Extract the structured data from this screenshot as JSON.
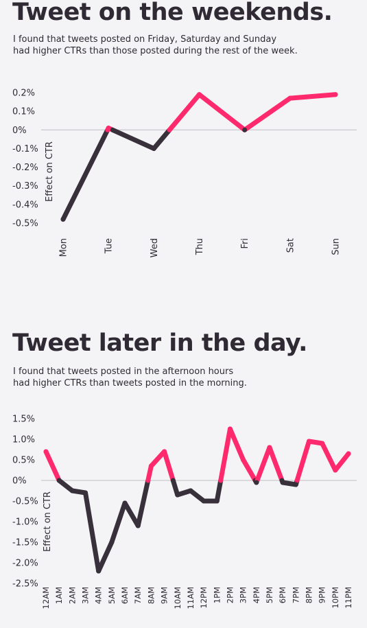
{
  "colors": {
    "positive": "#ff2a6d",
    "negative": "#38303a",
    "zero_line": "#c9c9cc"
  },
  "chart_data": [
    {
      "type": "line",
      "title": "Tweet on the weekends.",
      "subtitle": [
        "I found that tweets posted on Friday, Saturday and Sunday",
        "had higher CTRs than those posted during the rest of the week."
      ],
      "ylabel": "Effect on CTR",
      "xlabel": "",
      "categories": [
        "Mon",
        "Tue",
        "Wed",
        "Thu",
        "Fri",
        "Sat",
        "Sun"
      ],
      "values": [
        -0.48,
        0.01,
        -0.1,
        0.19,
        0.0,
        0.17,
        0.19
      ],
      "ylim": [
        -0.5,
        0.2
      ],
      "yticks": [
        0.2,
        0.1,
        0,
        -0.1,
        -0.2,
        -0.3,
        -0.4,
        -0.5
      ],
      "ytick_labels": [
        "0.2%",
        "0.1%",
        "0%",
        "-0.1%",
        "-0.2%",
        "-0.3%",
        "-0.4%",
        "-0.5%"
      ],
      "grid": false
    },
    {
      "type": "line",
      "title": "Tweet later in the day.",
      "subtitle": [
        "I found that tweets posted in the afternoon hours",
        "had higher CTRs than tweets posted in the morning."
      ],
      "ylabel": "Effect on CTR",
      "xlabel": "",
      "categories": [
        "12AM",
        "1AM",
        "2AM",
        "3AM",
        "4AM",
        "5AM",
        "6AM",
        "7AM",
        "8AM",
        "9AM",
        "10AM",
        "11AM",
        "12PM",
        "1PM",
        "2PM",
        "3PM",
        "4PM",
        "5PM",
        "6PM",
        "7PM",
        "8PM",
        "9PM",
        "10PM",
        "11PM"
      ],
      "values": [
        0.7,
        0.0,
        -0.25,
        -0.3,
        -2.2,
        -1.5,
        -0.55,
        -1.1,
        0.35,
        0.7,
        -0.35,
        -0.25,
        -0.5,
        -0.5,
        1.25,
        0.5,
        -0.05,
        0.8,
        -0.05,
        -0.1,
        0.95,
        0.9,
        0.25,
        0.65
      ],
      "ylim": [
        -2.5,
        1.5
      ],
      "yticks": [
        1.5,
        1.0,
        0.5,
        0,
        -0.5,
        -1.0,
        -1.5,
        -2.0,
        -2.5
      ],
      "ytick_labels": [
        "1.5%",
        "1.0%",
        "0.5%",
        "0%",
        "-0.5%",
        "-1.0%",
        "-1.5%",
        "-2.0%",
        "-2.5%"
      ],
      "grid": false
    }
  ]
}
